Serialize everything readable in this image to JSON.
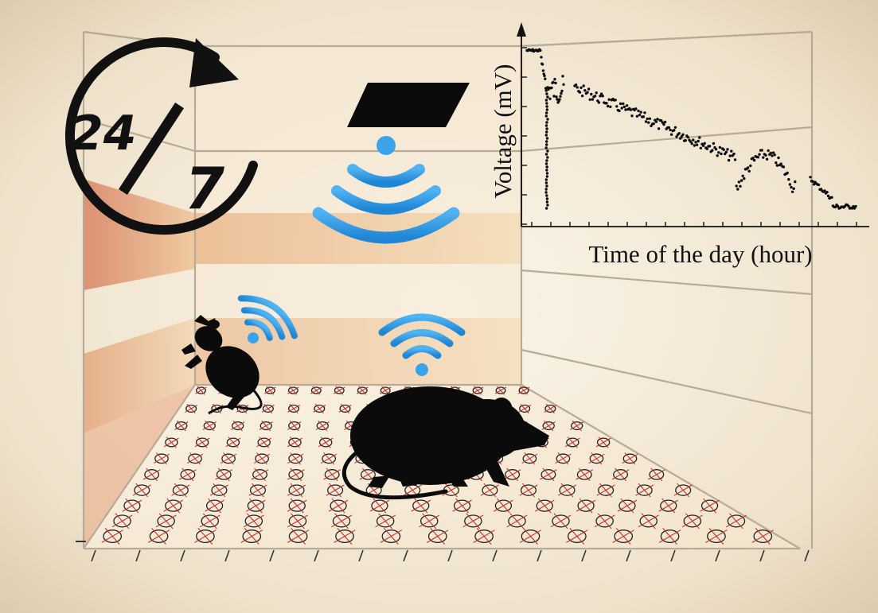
{
  "badge": {
    "hours": "24",
    "days": "7"
  },
  "graph": {
    "ylabel": "Voltage (mV)",
    "xlabel": "Time of the day (hour)"
  },
  "colors": {
    "background": "#f1e6d3",
    "wifi": "#2f9be6",
    "silhouette": "#0b0b0b",
    "marker": "#c8302a",
    "band": "#e6b384"
  },
  "icons": [
    "cycle-arrow-icon",
    "wifi-icon",
    "mouse-silhouette",
    "rat-silhouette",
    "reader-plate-icon"
  ]
}
